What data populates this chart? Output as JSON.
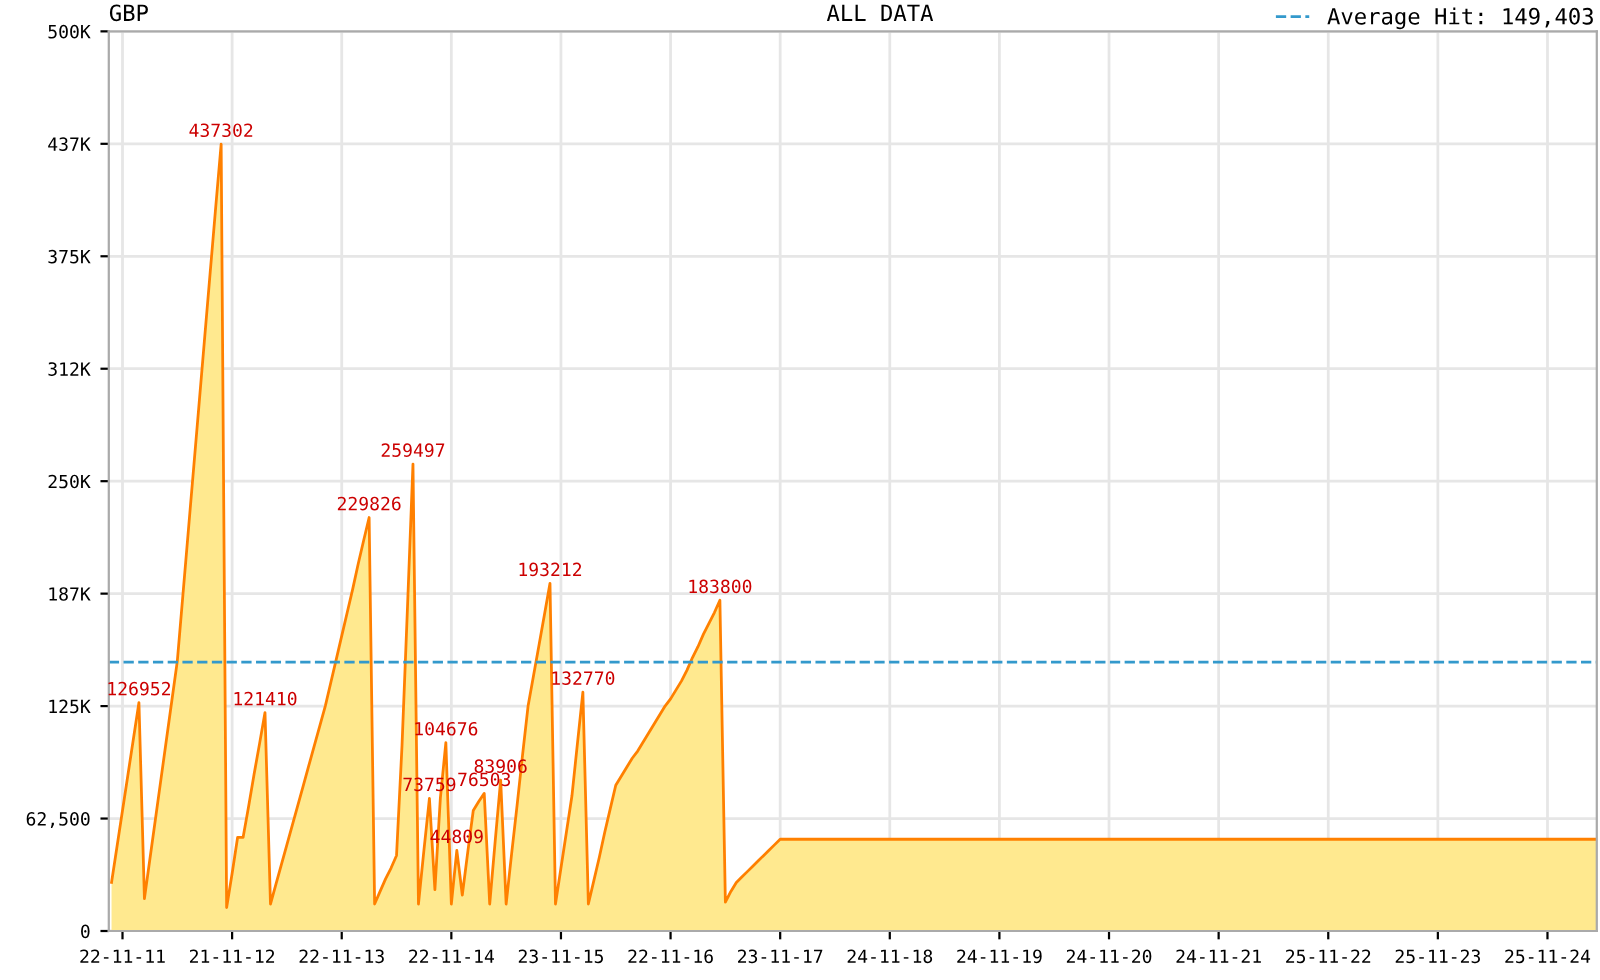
{
  "chart_data": {
    "type": "area",
    "title": "GBP",
    "subtitle": "ALL DATA",
    "categories": [
      null,
      null,
      "22-11-11",
      null,
      null,
      null,
      null,
      null,
      null,
      null,
      null,
      null,
      null,
      null,
      null,
      null,
      null,
      null,
      null,
      null,
      null,
      null,
      "21-11-12",
      null,
      null,
      null,
      null,
      null,
      null,
      null,
      null,
      null,
      null,
      null,
      null,
      null,
      null,
      null,
      null,
      null,
      null,
      null,
      "22-11-13",
      null,
      null,
      null,
      null,
      null,
      null,
      null,
      null,
      null,
      null,
      null,
      null,
      null,
      null,
      null,
      null,
      null,
      null,
      null,
      "22-11-14",
      null,
      null,
      null,
      null,
      null,
      null,
      null,
      null,
      null,
      null,
      null,
      null,
      null,
      null,
      null,
      null,
      null,
      null,
      null,
      "23-11-15",
      null,
      null,
      null,
      null,
      null,
      null,
      null,
      null,
      null,
      null,
      null,
      null,
      null,
      null,
      null,
      null,
      null,
      null,
      null,
      "22-11-16",
      null,
      null,
      null,
      null,
      null,
      null,
      null,
      null,
      null,
      null,
      null,
      null,
      null,
      null,
      null,
      null,
      null,
      null,
      null,
      "23-11-17",
      null,
      null,
      null,
      null,
      null,
      null,
      null,
      null,
      null,
      null,
      null,
      null,
      null,
      null,
      null,
      null,
      null,
      null,
      null,
      "24-11-18",
      null,
      null,
      null,
      null,
      null,
      null,
      null,
      null,
      null,
      null,
      null,
      null,
      null,
      null,
      null,
      null,
      null,
      null,
      null,
      "24-11-19",
      null,
      null,
      null,
      null,
      null,
      null,
      null,
      null,
      null,
      null,
      null,
      null,
      null,
      null,
      null,
      null,
      null,
      null,
      null,
      "24-11-20",
      null,
      null,
      null,
      null,
      null,
      null,
      null,
      null,
      null,
      null,
      null,
      null,
      null,
      null,
      null,
      null,
      null,
      null,
      null,
      "24-11-21",
      null,
      null,
      null,
      null,
      null,
      null,
      null,
      null,
      null,
      null,
      null,
      null,
      null,
      null,
      null,
      null,
      null,
      null,
      null,
      "25-11-22",
      null,
      null,
      null,
      null,
      null,
      null,
      null,
      null,
      null,
      null,
      null,
      null,
      null,
      null,
      null,
      null,
      null,
      null,
      null,
      "25-11-23",
      null,
      null,
      null,
      null,
      null,
      null,
      null,
      null,
      null,
      null,
      null,
      null,
      null,
      null,
      null,
      null,
      null,
      null,
      null,
      "25-11-24",
      null,
      null,
      null,
      null,
      null,
      null,
      null,
      null,
      null
    ],
    "ylim": [
      0,
      500000
    ],
    "yticks": [
      0,
      {
        "value": 62500,
        "label": "62,500"
      },
      {
        "value": 125000,
        "label": "125K"
      },
      {
        "value": 187500,
        "label": "187K"
      },
      {
        "value": 250000,
        "label": "250K"
      },
      {
        "value": 312500,
        "label": "312K"
      },
      {
        "value": 375000,
        "label": "375K"
      },
      {
        "value": 437500,
        "label": "437K"
      },
      {
        "value": 500000,
        "label": "500K"
      }
    ],
    "grid": true,
    "legend": "top right",
    "ref_lines": [
      {
        "axis": "y",
        "value": 149403,
        "label": "Average Hit: 149,403",
        "color": "#3399cc",
        "line_style": "dashed"
      }
    ],
    "series": [
      {
        "color": "#ff8000",
        "values": [
          27000,
          47000,
          67000,
          87000,
          107000,
          126952,
          18000,
          40000,
          62000,
          84000,
          106000,
          128000,
          150000,
          186000,
          222000,
          258000,
          294000,
          330000,
          366000,
          402000,
          437302,
          13000,
          32000,
          52000,
          52000,
          69000,
          87000,
          104000,
          121410,
          15000,
          26000,
          37000,
          48000,
          59000,
          70000,
          81000,
          92000,
          103000,
          114000,
          125000,
          138000,
          151000,
          164000,
          177000,
          190000,
          204000,
          217000,
          229826,
          15000,
          22000,
          29000,
          35000,
          42000,
          103000,
          180000,
          259497,
          15000,
          45000,
          73759,
          23000,
          74000,
          104676,
          15000,
          44809,
          20000,
          44000,
          67000,
          72000,
          76503,
          15000,
          50000,
          83906,
          15000,
          43000,
          70000,
          98000,
          125000,
          142000,
          159000,
          176000,
          193212,
          15000,
          35000,
          55000,
          75000,
          104000,
          132770,
          15000,
          28000,
          41000,
          55000,
          68000,
          81000,
          86000,
          91000,
          96000,
          100000,
          105000,
          110000,
          115000,
          120000,
          125000,
          129000,
          134000,
          139000,
          145000,
          152000,
          158000,
          165000,
          171000,
          177000,
          183800,
          16000,
          22000,
          27000,
          30000,
          33000,
          36000,
          39000,
          42000,
          45000,
          48000,
          51000,
          51000,
          51000,
          51000,
          51000,
          51000,
          51000,
          51000,
          51000,
          51000,
          51000,
          51000,
          51000,
          51000,
          51000,
          51000,
          51000,
          51000,
          51000,
          51000,
          51000,
          51000,
          51000,
          51000,
          51000,
          51000,
          51000,
          51000,
          51000,
          51000,
          51000,
          51000,
          51000,
          51000,
          51000,
          51000,
          51000,
          51000,
          51000,
          51000,
          51000,
          51000,
          51000,
          51000,
          51000,
          51000,
          51000,
          51000,
          51000,
          51000,
          51000,
          51000,
          51000,
          51000,
          51000,
          51000,
          51000,
          51000,
          51000,
          51000,
          51000,
          51000,
          51000,
          51000,
          51000,
          51000,
          51000,
          51000,
          51000,
          51000,
          51000,
          51000,
          51000,
          51000,
          51000,
          51000,
          51000,
          51000,
          51000,
          51000,
          51000,
          51000,
          51000,
          51000,
          51000,
          51000,
          51000,
          51000,
          51000,
          51000,
          51000,
          51000,
          51000,
          51000,
          51000,
          51000,
          51000,
          51000,
          51000,
          51000,
          51000,
          51000,
          51000,
          51000,
          51000,
          51000,
          51000,
          51000,
          51000,
          51000,
          51000,
          51000,
          51000,
          51000,
          51000,
          51000,
          51000,
          51000,
          51000,
          51000,
          51000,
          51000,
          51000,
          51000,
          51000,
          51000,
          51000,
          51000,
          51000,
          51000,
          51000,
          51000,
          51000,
          51000,
          51000,
          51000,
          51000,
          51000,
          51000,
          51000,
          51000,
          51000,
          51000,
          51000,
          51000,
          51000,
          51000,
          51000,
          51000,
          51000
        ],
        "value_labels": [
          null,
          null,
          null,
          null,
          null,
          "126952",
          null,
          null,
          null,
          null,
          null,
          null,
          null,
          null,
          null,
          null,
          null,
          null,
          null,
          null,
          "437302",
          null,
          null,
          null,
          null,
          null,
          null,
          null,
          "121410",
          null,
          null,
          null,
          null,
          null,
          null,
          null,
          null,
          null,
          null,
          null,
          null,
          null,
          null,
          null,
          null,
          null,
          null,
          "229826",
          null,
          null,
          null,
          null,
          null,
          null,
          null,
          "259497",
          null,
          null,
          "73759",
          null,
          null,
          "104676",
          null,
          "44809",
          null,
          null,
          null,
          null,
          "76503",
          null,
          null,
          "83906",
          null,
          null,
          null,
          null,
          null,
          null,
          null,
          null,
          "193212",
          null,
          null,
          null,
          null,
          null,
          "132770",
          null,
          null,
          null,
          null,
          null,
          null,
          null,
          null,
          null,
          null,
          null,
          null,
          null,
          null,
          null,
          null,
          null,
          null,
          null,
          null,
          null,
          null,
          null,
          null,
          "183800",
          null,
          null,
          null,
          null,
          null,
          null,
          null,
          null,
          null,
          null,
          null,
          null,
          null,
          null,
          null,
          null,
          null,
          null,
          null,
          null,
          null,
          null,
          null,
          null,
          null,
          null,
          null,
          null,
          null,
          null,
          null,
          null,
          null,
          null,
          null,
          null,
          null,
          null,
          null,
          null,
          null,
          null,
          null,
          null,
          null,
          null,
          null,
          null,
          null,
          null,
          null,
          null,
          null,
          null,
          null,
          null,
          null,
          null,
          null,
          null,
          null,
          null,
          null,
          null,
          null,
          null,
          null,
          null,
          null,
          null,
          null,
          null,
          null,
          null,
          null,
          null,
          null,
          null,
          null,
          null,
          null,
          null,
          null,
          null,
          null,
          null,
          null,
          null,
          null,
          null,
          null,
          null,
          null,
          null,
          null,
          null,
          null,
          null,
          null,
          null,
          null,
          null,
          null,
          null,
          null,
          null,
          null,
          null,
          null,
          null,
          null,
          null,
          null,
          null,
          null,
          null,
          null,
          null,
          null,
          null,
          null,
          null,
          null,
          null,
          null,
          null,
          null,
          null,
          null,
          null,
          null,
          null,
          null,
          null,
          null,
          null,
          null,
          null,
          null,
          null,
          null,
          null,
          null,
          null,
          null,
          null,
          null,
          null,
          null,
          null,
          null,
          null,
          null,
          null,
          null,
          null,
          null,
          null,
          null,
          null
        ]
      }
    ]
  }
}
